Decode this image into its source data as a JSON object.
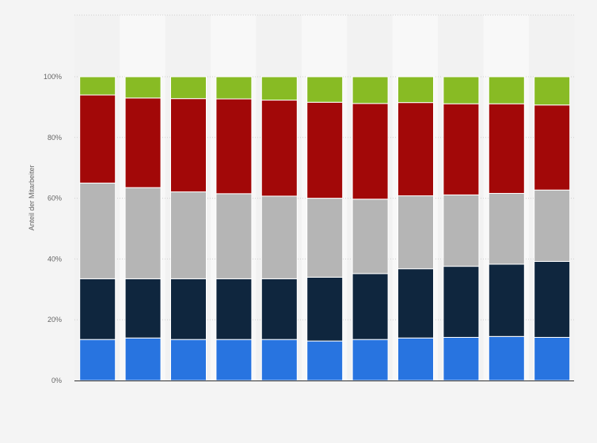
{
  "chart_data": {
    "type": "bar",
    "stacked": true,
    "ylabel": "Anteil der Mitarbeiter",
    "ylim": [
      0,
      100
    ],
    "yticks": [
      "0%",
      "20%",
      "40%",
      "60%",
      "80%",
      "100%"
    ],
    "grid": true,
    "categories": [
      "",
      "",
      "",
      "",
      "",
      "",
      "",
      "",
      "",
      "",
      ""
    ],
    "series": [
      {
        "color": "#2874e0",
        "values": [
          13.5,
          14,
          13.5,
          13.5,
          13.5,
          13,
          13.5,
          14,
          14.2,
          14.5,
          14.2
        ]
      },
      {
        "color": "#0f263e",
        "values": [
          20,
          19.5,
          20,
          20,
          20,
          21,
          21.7,
          22.8,
          23.4,
          23.8,
          25
        ]
      },
      {
        "color": "#b5b5b5",
        "values": [
          31.5,
          30,
          28.6,
          28,
          27.2,
          26,
          24.5,
          24,
          23.5,
          23.3,
          23.5
        ]
      },
      {
        "color": "#a20808",
        "values": [
          29,
          29.5,
          30.7,
          31.2,
          31.6,
          31.6,
          31.5,
          30.7,
          30,
          29.5,
          28
        ]
      },
      {
        "color": "#88bb24",
        "values": [
          6,
          7,
          7.2,
          7.3,
          7.7,
          8.4,
          8.8,
          8.5,
          8.9,
          8.9,
          9.3
        ]
      }
    ]
  }
}
